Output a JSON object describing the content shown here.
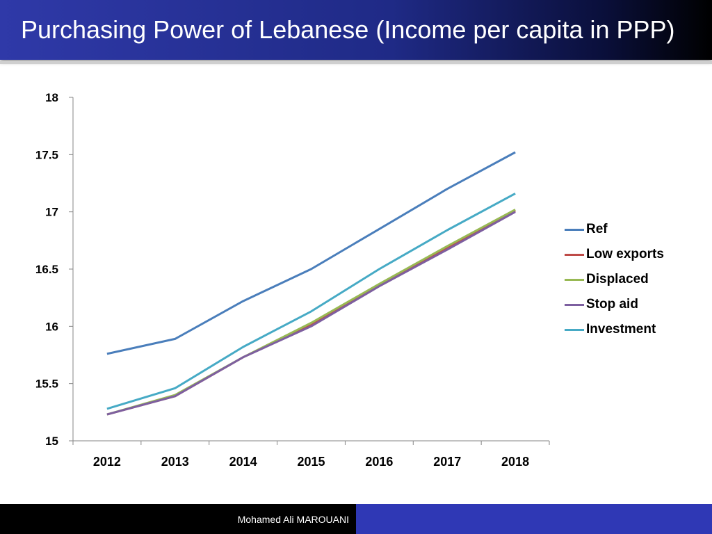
{
  "slide": {
    "title": "Purchasing Power of Lebanese (Income per capita in PPP)",
    "footer": "Mohamed Ali MAROUANI"
  },
  "chart_data": {
    "type": "line",
    "title": "",
    "xlabel": "",
    "ylabel": "",
    "x": [
      "2012",
      "2013",
      "2014",
      "2015",
      "2016",
      "2017",
      "2018"
    ],
    "ylim": [
      15,
      18
    ],
    "yticks": [
      "15",
      "15.5",
      "16",
      "16.5",
      "17",
      "17.5",
      "18"
    ],
    "grid": false,
    "legend_position": "right",
    "series": [
      {
        "name": "Ref",
        "color": "#4a7ebb",
        "values": [
          15.76,
          15.89,
          16.22,
          16.5,
          16.85,
          17.2,
          17.52
        ]
      },
      {
        "name": "Low exports",
        "color": "#be4b48",
        "values": [
          15.23,
          15.39,
          15.73,
          16.01,
          16.36,
          16.69,
          17.01
        ]
      },
      {
        "name": "Displaced",
        "color": "#98b954",
        "values": [
          15.23,
          15.4,
          15.73,
          16.03,
          16.37,
          16.7,
          17.02
        ]
      },
      {
        "name": "Stop aid",
        "color": "#7d5fa0",
        "values": [
          15.23,
          15.39,
          15.73,
          16.0,
          16.35,
          16.67,
          17.0
        ]
      },
      {
        "name": "Investment",
        "color": "#46aac5",
        "values": [
          15.28,
          15.46,
          15.82,
          16.13,
          16.5,
          16.84,
          17.16
        ]
      }
    ]
  }
}
